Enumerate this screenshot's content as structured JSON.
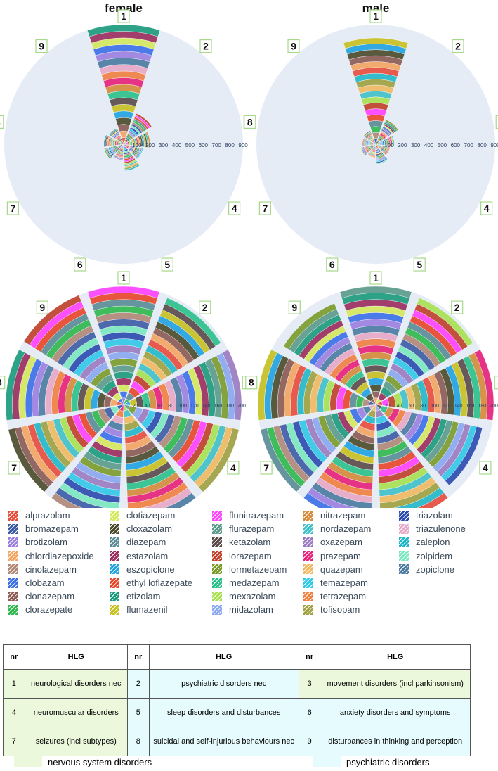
{
  "chart_data": [
    {
      "type": "polar-bar",
      "title": "female",
      "rmax": 900,
      "ticks": [
        100,
        200,
        300,
        400,
        500,
        600,
        700,
        800,
        900
      ],
      "categories": [
        "1",
        "2",
        "3",
        "4",
        "5",
        "6",
        "7",
        "8",
        "9"
      ],
      "values": [
        900,
        250,
        200,
        150,
        200,
        120,
        150,
        150,
        130
      ]
    },
    {
      "type": "polar-bar",
      "title": "male",
      "rmax": 900,
      "ticks": [
        100,
        200,
        300,
        400,
        500,
        600,
        700,
        800,
        900
      ],
      "categories": [
        "1",
        "2",
        "3",
        "4",
        "5",
        "6",
        "7",
        "8",
        "9"
      ],
      "values": [
        800,
        200,
        140,
        110,
        150,
        100,
        120,
        100,
        110
      ]
    },
    {
      "type": "polar-bar",
      "title": "",
      "rmax": 200,
      "ticks": [
        20,
        40,
        60,
        80,
        100,
        120,
        140,
        160,
        180,
        200
      ],
      "categories": [
        "1",
        "2",
        "3",
        "4",
        "5",
        "6",
        "7",
        "8",
        "9"
      ],
      "values": [
        200,
        195,
        200,
        200,
        200,
        200,
        200,
        200,
        200
      ]
    },
    {
      "type": "polar-bar",
      "title": "",
      "rmax": 200,
      "ticks": [
        20,
        40,
        60,
        80,
        100,
        120,
        140,
        160,
        180,
        200
      ],
      "categories": [
        "1",
        "2",
        "3",
        "4",
        "5",
        "6",
        "7",
        "8",
        "9"
      ],
      "values": [
        200,
        195,
        200,
        185,
        200,
        200,
        200,
        200,
        185
      ]
    }
  ],
  "legend": [
    {
      "label": "alprazolam",
      "color": "#e74c3c"
    },
    {
      "label": "bromazepam",
      "color": "#3b5ba5"
    },
    {
      "label": "brotizolam",
      "color": "#9b7fe0"
    },
    {
      "label": "chlordiazepoxide",
      "color": "#f4a460"
    },
    {
      "label": "cinolazepam",
      "color": "#b08878"
    },
    {
      "label": "clobazam",
      "color": "#3a6fe8"
    },
    {
      "label": "clonazepam",
      "color": "#8c5a52"
    },
    {
      "label": "clorazepate",
      "color": "#2eb84c"
    },
    {
      "label": "clotiazepam",
      "color": "#d4e85a"
    },
    {
      "label": "cloxazolam",
      "color": "#4a4a2a"
    },
    {
      "label": "diazepam",
      "color": "#5a8c96"
    },
    {
      "label": "estazolam",
      "color": "#9b2c5c"
    },
    {
      "label": "eszopiclone",
      "color": "#1fa2e0"
    },
    {
      "label": "ethyl loflazepate",
      "color": "#e8452a"
    },
    {
      "label": "etizolam",
      "color": "#1a9a7a"
    },
    {
      "label": "flumazenil",
      "color": "#c8c020"
    },
    {
      "label": "flunitrazepam",
      "color": "#ff40ff"
    },
    {
      "label": "flurazepam",
      "color": "#5a9a8a"
    },
    {
      "label": "ketazolam",
      "color": "#5a4a4a"
    },
    {
      "label": "lorazepam",
      "color": "#c0402a"
    },
    {
      "label": "lormetazepam",
      "color": "#7a9a2a"
    },
    {
      "label": "medazepam",
      "color": "#2ac08a"
    },
    {
      "label": "mexazolam",
      "color": "#a8e050"
    },
    {
      "label": "midazolam",
      "color": "#8aa8f0"
    },
    {
      "label": "nitrazepam",
      "color": "#d48a3a"
    },
    {
      "label": "nordazepam",
      "color": "#40c0c8"
    },
    {
      "label": "oxazepam",
      "color": "#9a7ac0"
    },
    {
      "label": "prazepam",
      "color": "#e8207a"
    },
    {
      "label": "quazepam",
      "color": "#f0b860"
    },
    {
      "label": "temazepam",
      "color": "#30c8e8"
    },
    {
      "label": "tetrazepam",
      "color": "#f08040"
    },
    {
      "label": "tofisopam",
      "color": "#a0a040"
    },
    {
      "label": "triazolam",
      "color": "#2a4ab0"
    },
    {
      "label": "triazulenone",
      "color": "#e8a8c8"
    },
    {
      "label": "zaleplon",
      "color": "#20b8c8"
    },
    {
      "label": "zolpidem",
      "color": "#7ae8c0"
    },
    {
      "label": "zopiclone",
      "color": "#4a7aa0"
    }
  ],
  "table": {
    "headers": [
      "nr",
      "HLG",
      "nr",
      "HLG",
      "nr",
      "HLG"
    ],
    "rows": [
      [
        {
          "nr": "1",
          "hlg": "neurological disorders nec",
          "cls": "nervous"
        },
        {
          "nr": "2",
          "hlg": "psychiatric disorders nec",
          "cls": "psych"
        },
        {
          "nr": "3",
          "hlg": "movement disorders (incl parkinsonism)",
          "cls": "nervous"
        }
      ],
      [
        {
          "nr": "4",
          "hlg": "neuromuscular disorders",
          "cls": "nervous"
        },
        {
          "nr": "5",
          "hlg": "sleep disorders and disturbances",
          "cls": "psych"
        },
        {
          "nr": "6",
          "hlg": "anxiety disorders and symptoms",
          "cls": "psych"
        }
      ],
      [
        {
          "nr": "7",
          "hlg": "seizures (incl subtypes)",
          "cls": "nervous"
        },
        {
          "nr": "8",
          "hlg": "suicidal and self-injurious behaviours nec",
          "cls": "psych"
        },
        {
          "nr": "9",
          "hlg": "disturbances in thinking and perception",
          "cls": "psych"
        }
      ]
    ]
  },
  "footer": {
    "nervous": "nervous system disorders",
    "psych": "psychiatric disorders",
    "nervous_color": "#ebf8dc",
    "psych_color": "#e6fbfd"
  }
}
